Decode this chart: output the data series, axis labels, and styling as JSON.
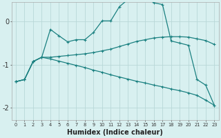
{
  "xlabel": "Humidex (Indice chaleur)",
  "bg_color": "#d8f0f0",
  "grid_color": "#b8d8d8",
  "line_color": "#1a8080",
  "xlim": [
    -0.5,
    23.5
  ],
  "ylim": [
    -2.3,
    0.45
  ],
  "yticks": [
    -2,
    -1,
    0
  ],
  "s1_x": [
    0,
    1,
    2,
    3,
    4,
    5,
    6,
    7,
    8,
    9,
    10,
    11,
    12,
    13,
    14,
    15,
    16,
    17,
    18,
    19,
    20,
    21,
    22,
    23
  ],
  "s1_y": [
    -1.4,
    -1.35,
    -0.93,
    -0.83,
    -0.18,
    -0.33,
    -0.47,
    -0.42,
    -0.42,
    -0.25,
    0.02,
    0.02,
    0.35,
    0.52,
    0.62,
    0.57,
    0.44,
    0.4,
    -0.45,
    -0.5,
    -0.55,
    -1.35,
    -1.48,
    -1.95
  ],
  "s2_x": [
    0,
    1,
    2,
    3,
    4,
    5,
    6,
    7,
    8,
    9,
    10,
    11,
    12,
    13,
    14,
    15,
    16,
    17,
    18,
    19,
    20,
    21,
    22,
    23
  ],
  "s2_y": [
    -1.4,
    -1.35,
    -0.93,
    -0.83,
    -0.83,
    -0.81,
    -0.79,
    -0.77,
    -0.75,
    -0.72,
    -0.68,
    -0.64,
    -0.58,
    -0.52,
    -0.46,
    -0.42,
    -0.38,
    -0.36,
    -0.35,
    -0.35,
    -0.36,
    -0.4,
    -0.44,
    -0.53
  ],
  "s3_x": [
    0,
    1,
    2,
    3,
    4,
    5,
    6,
    7,
    8,
    9,
    10,
    11,
    12,
    13,
    14,
    15,
    16,
    17,
    18,
    19,
    20,
    21,
    22,
    23
  ],
  "s3_y": [
    -1.4,
    -1.35,
    -0.93,
    -0.83,
    -0.87,
    -0.92,
    -0.97,
    -1.02,
    -1.07,
    -1.13,
    -1.18,
    -1.24,
    -1.29,
    -1.34,
    -1.39,
    -1.43,
    -1.48,
    -1.52,
    -1.57,
    -1.61,
    -1.66,
    -1.72,
    -1.83,
    -1.95
  ]
}
